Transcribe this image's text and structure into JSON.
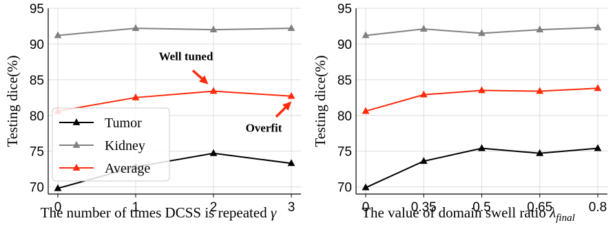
{
  "chart_data": [
    {
      "type": "line",
      "x": [
        "0",
        "1",
        "2",
        "3"
      ],
      "xlabel": "The number of times DCSS is repeated",
      "xlabel_symbol": "γ",
      "ylabel": "Testing dice(%)",
      "ylim": [
        69,
        95
      ],
      "yticks": [
        70,
        75,
        80,
        85,
        90,
        95
      ],
      "grid": true,
      "legend": {
        "placement": "bottom-left",
        "entries": [
          "Tumor",
          "Kidney",
          "Average"
        ]
      },
      "series": [
        {
          "name": "Tumor",
          "color": "#000000",
          "values": [
            69.8,
            72.8,
            74.7,
            73.3
          ]
        },
        {
          "name": "Kidney",
          "color": "#808080",
          "values": [
            91.2,
            92.2,
            92.0,
            92.2
          ]
        },
        {
          "name": "Average",
          "color": "#ff2a0a",
          "values": [
            80.6,
            82.5,
            83.4,
            82.7
          ]
        }
      ],
      "annotations": [
        {
          "text": "Well tuned",
          "target_x": "2",
          "target_series": "Average"
        },
        {
          "text": "Overfit",
          "target_x": "3",
          "target_series": "Average"
        }
      ]
    },
    {
      "type": "line",
      "x": [
        "0",
        "0.35",
        "0.5",
        "0.65",
        "0.8"
      ],
      "xlabel": "The value of domain swell ratio",
      "xlabel_symbol": "λ",
      "xlabel_subscript": "final",
      "ylabel": "Testing dice(%)",
      "ylim": [
        69,
        95
      ],
      "yticks": [
        70,
        75,
        80,
        85,
        90,
        95
      ],
      "grid": true,
      "series": [
        {
          "name": "Tumor",
          "color": "#000000",
          "values": [
            69.9,
            73.6,
            75.4,
            74.7,
            75.4
          ]
        },
        {
          "name": "Kidney",
          "color": "#808080",
          "values": [
            91.2,
            92.1,
            91.5,
            92.0,
            92.3
          ]
        },
        {
          "name": "Average",
          "color": "#ff2a0a",
          "values": [
            80.6,
            82.9,
            83.5,
            83.4,
            83.8
          ]
        }
      ]
    }
  ]
}
